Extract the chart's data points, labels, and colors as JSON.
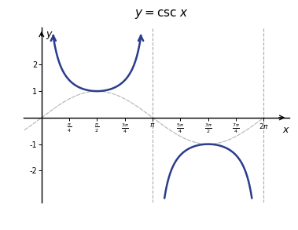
{
  "title": "y = \\csc x",
  "xlim": [
    -0.5,
    7.0
  ],
  "ylim": [
    -3.2,
    3.4
  ],
  "csc_color": "#2B3C8C",
  "sin_color": "#BBBBBB",
  "bg_color": "#FFFFFF",
  "x_ticks": [
    0.7854,
    1.5708,
    2.3562,
    3.1416,
    3.927,
    4.7124,
    5.4978,
    6.2832
  ],
  "x_tick_labels": [
    "\\frac{\\pi}{4}",
    "\\frac{\\pi}{2}",
    "\\frac{3\\pi}{4}",
    "\\pi",
    "\\frac{5\\pi}{4}",
    "\\frac{3\\pi}{2}",
    "\\frac{7\\pi}{4}",
    "2\\pi"
  ],
  "y_ticks": [
    -2,
    -1,
    1,
    2
  ],
  "y_tick_labels": [
    "-2",
    "-1",
    "1",
    "2"
  ],
  "vert_asymptotes": [
    0.0,
    3.1416,
    6.2832
  ],
  "clip_val": 3.05,
  "arrow_clip": 3.05
}
